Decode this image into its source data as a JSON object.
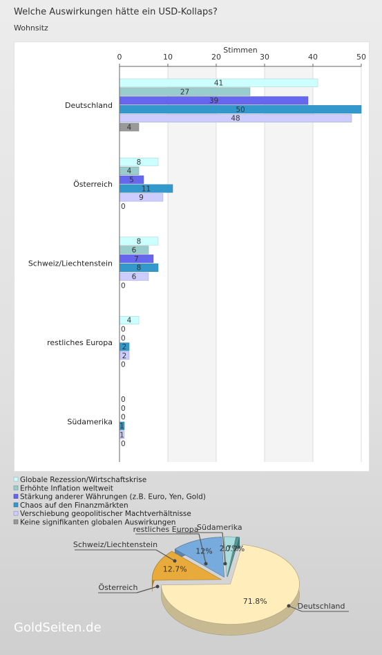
{
  "title": "Welche Auswirkungen hätte ein USD-Kollaps?",
  "subtitle": "Wohnsitz",
  "brand": "GoldSeiten.de",
  "chart_data": [
    {
      "type": "bar",
      "orientation": "horizontal",
      "categories": [
        "Deutschland",
        "Österreich",
        "Schweiz/Liechtenstein",
        "restliches Europa",
        "Südamerika"
      ],
      "series": [
        {
          "name": "Globale Rezession/Wirtschaftskrise",
          "values": [
            41,
            8,
            8,
            4,
            0
          ],
          "color": "#ccffff"
        },
        {
          "name": "Erhöhte Inflation weltweit",
          "values": [
            27,
            4,
            6,
            0,
            0
          ],
          "color": "#99cccc"
        },
        {
          "name": "Stärkung anderer Währungen (z.B. Euro, Yen, Gold)",
          "values": [
            39,
            5,
            7,
            0,
            0
          ],
          "color": "#6666ee"
        },
        {
          "name": "Chaos auf den Finanzmärkten",
          "values": [
            50,
            11,
            8,
            2,
            1
          ],
          "color": "#3399cc"
        },
        {
          "name": "Verschiebung geopolitischer Machtverhältnisse",
          "values": [
            48,
            9,
            6,
            2,
            1
          ],
          "color": "#ccccff"
        },
        {
          "name": "Keine signifikanten globalen Auswirkungen",
          "values": [
            4,
            0,
            0,
            0,
            0
          ],
          "color": "#999999"
        }
      ],
      "xlabel": "Stimmen",
      "xlim": [
        0,
        50
      ],
      "ticks": [
        "0",
        "10",
        "20",
        "30",
        "40",
        "50"
      ],
      "axis_position": "top",
      "grid": true,
      "legend_position": "bottom-left"
    },
    {
      "type": "pie",
      "style": "3d",
      "slices": [
        {
          "label": "Deutschland",
          "value": 71.8,
          "value_label": "71.8%",
          "color": "#ffeebb"
        },
        {
          "label": "Österreich",
          "value": 12.7,
          "value_label": "12.7%",
          "color": "#e8aa3a"
        },
        {
          "label": "Schweiz/Liechtenstein",
          "value": 12.0,
          "value_label": "12%",
          "color": "#77aadd"
        },
        {
          "label": "restliches Europa",
          "value": 2.7,
          "value_label": "2.7%",
          "color": "#aadddd"
        },
        {
          "label": "Südamerika",
          "value": 0.7,
          "value_label": "0.7%",
          "color": "#559999"
        }
      ]
    }
  ]
}
